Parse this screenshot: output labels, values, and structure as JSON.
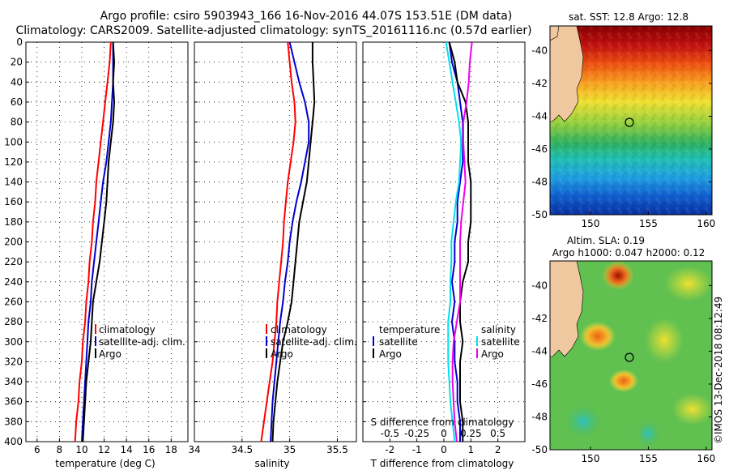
{
  "header": {
    "title_line1": "Argo profile: csiro 5903943_166 16-Nov-2016 44.07S 153.51E (DM data)",
    "title_line2": "Climatology: CARS2009. Satellite-adjusted climatology: synTS_20161116.nc (0.57d earlier)"
  },
  "colors": {
    "climatology": "#ff0000",
    "satellite": "#0000cc",
    "argo": "#000000",
    "s_satellite": "#00e0ee",
    "s_argo_diff": "#ee00ee",
    "land": "#f0c8a0"
  },
  "chart_data": [
    {
      "type": "line",
      "name": "temperature-profile",
      "xlabel": "temperature (deg C)",
      "ylabel": "",
      "xlim": [
        5,
        19.5
      ],
      "ylim": [
        400,
        0
      ],
      "xticks": [
        "6",
        "8",
        "10",
        "12",
        "14",
        "16",
        "18"
      ],
      "yticks": [
        "0",
        "20",
        "40",
        "60",
        "80",
        "100",
        "120",
        "140",
        "160",
        "180",
        "200",
        "220",
        "240",
        "260",
        "280",
        "300",
        "320",
        "340",
        "360",
        "380",
        "400"
      ],
      "legend": [
        "climatology",
        "satellite-adj. clim.",
        "Argo"
      ],
      "series": [
        {
          "name": "climatology",
          "depth": [
            0,
            20,
            40,
            60,
            80,
            100,
            120,
            140,
            160,
            180,
            200,
            220,
            240,
            260,
            280,
            300,
            320,
            340,
            360,
            380,
            400
          ],
          "values": [
            12.6,
            12.5,
            12.3,
            12.1,
            11.9,
            11.7,
            11.5,
            11.3,
            11.2,
            11.0,
            10.9,
            10.7,
            10.6,
            10.4,
            10.3,
            10.1,
            10.0,
            9.8,
            9.7,
            9.5,
            9.4
          ]
        },
        {
          "name": "satellite-adj. clim.",
          "depth": [
            0,
            20,
            40,
            60,
            80,
            100,
            120,
            140,
            160,
            180,
            200,
            220,
            240,
            260,
            280,
            300,
            320,
            340,
            360,
            380,
            400
          ],
          "values": [
            12.8,
            12.8,
            12.8,
            12.7,
            12.6,
            12.4,
            12.2,
            11.9,
            11.7,
            11.5,
            11.3,
            11.1,
            10.9,
            10.8,
            10.6,
            10.5,
            10.4,
            10.3,
            10.2,
            10.1,
            10.0
          ]
        },
        {
          "name": "Argo",
          "depth": [
            0,
            20,
            40,
            60,
            80,
            100,
            120,
            140,
            160,
            180,
            200,
            220,
            240,
            260,
            280,
            300,
            320,
            340,
            360,
            380,
            400
          ],
          "values": [
            12.8,
            12.9,
            12.8,
            12.9,
            12.8,
            12.6,
            12.4,
            12.3,
            12.2,
            12.0,
            11.8,
            11.6,
            11.3,
            11.0,
            10.9,
            10.8,
            10.6,
            10.4,
            10.3,
            10.2,
            10.1
          ]
        }
      ]
    },
    {
      "type": "line",
      "name": "salinity-profile",
      "xlabel": "salinity",
      "xlim": [
        34,
        35.7
      ],
      "ylim": [
        400,
        0
      ],
      "xticks": [
        "34",
        "34.5",
        "35",
        "35.5"
      ],
      "legend": [
        "climatology",
        "satellite-adj. clim.",
        "Argo"
      ],
      "series": [
        {
          "name": "climatology",
          "depth": [
            0,
            20,
            40,
            60,
            80,
            100,
            120,
            140,
            160,
            180,
            200,
            220,
            240,
            260,
            280,
            300,
            320,
            340,
            360,
            380,
            400
          ],
          "values": [
            34.98,
            35.0,
            35.02,
            35.05,
            35.06,
            35.04,
            35.01,
            34.98,
            34.96,
            34.94,
            34.93,
            34.91,
            34.89,
            34.87,
            34.86,
            34.84,
            34.82,
            34.79,
            34.76,
            34.73,
            34.7
          ]
        },
        {
          "name": "satellite-adj. clim.",
          "depth": [
            0,
            20,
            40,
            60,
            80,
            100,
            120,
            140,
            160,
            180,
            200,
            220,
            240,
            260,
            280,
            300,
            320,
            340,
            360,
            380,
            400
          ],
          "values": [
            35.0,
            35.05,
            35.1,
            35.16,
            35.2,
            35.2,
            35.16,
            35.12,
            35.07,
            35.03,
            35.0,
            34.98,
            34.95,
            34.93,
            34.9,
            34.88,
            34.86,
            34.84,
            34.82,
            34.81,
            34.8
          ]
        },
        {
          "name": "Argo",
          "depth": [
            0,
            20,
            40,
            60,
            80,
            100,
            120,
            140,
            160,
            180,
            200,
            220,
            240,
            260,
            280,
            300,
            320,
            340,
            360,
            380,
            400
          ],
          "values": [
            35.24,
            35.24,
            35.25,
            35.26,
            35.24,
            35.22,
            35.2,
            35.18,
            35.14,
            35.1,
            35.08,
            35.06,
            35.04,
            35.02,
            34.98,
            34.93,
            34.9,
            34.87,
            34.85,
            34.83,
            34.82
          ]
        }
      ]
    },
    {
      "type": "line",
      "name": "difference-profile",
      "xlabel": "T difference from climatology",
      "xlabel_top": "S difference from climatology",
      "xlim": [
        -3,
        3
      ],
      "ylim": [
        400,
        0
      ],
      "xticks": [
        "-2",
        "-1",
        "0",
        "1",
        "2"
      ],
      "xticks_salinity": [
        "-0.5",
        "-0.25",
        "0",
        "0.25",
        "0.5"
      ],
      "legend_temperature": [
        "temperature",
        "satellite",
        "Argo"
      ],
      "legend_salinity": [
        "salinity",
        "satellite",
        "Argo"
      ],
      "series": [
        {
          "name": "T satellite",
          "depth": [
            0,
            20,
            40,
            60,
            80,
            100,
            120,
            140,
            160,
            180,
            200,
            220,
            240,
            260,
            280,
            300,
            320,
            340,
            360,
            380,
            400
          ],
          "values": [
            0.2,
            0.3,
            0.5,
            0.6,
            0.7,
            0.7,
            0.7,
            0.6,
            0.5,
            0.5,
            0.4,
            0.4,
            0.3,
            0.4,
            0.3,
            0.4,
            0.4,
            0.5,
            0.5,
            0.6,
            0.6
          ]
        },
        {
          "name": "T Argo",
          "depth": [
            0,
            20,
            40,
            60,
            80,
            100,
            120,
            140,
            160,
            180,
            200,
            220,
            240,
            260,
            280,
            300,
            320,
            340,
            360,
            380,
            400
          ],
          "values": [
            0.2,
            0.4,
            0.5,
            0.8,
            0.9,
            0.9,
            0.9,
            1.0,
            1.0,
            1.0,
            0.9,
            0.9,
            0.7,
            0.6,
            0.6,
            0.7,
            0.6,
            0.6,
            0.6,
            0.7,
            0.7
          ]
        },
        {
          "name": "S satellite",
          "depth": [
            0,
            20,
            40,
            60,
            80,
            100,
            120,
            140,
            160,
            180,
            200,
            220,
            240,
            260,
            280,
            300,
            320,
            340,
            360,
            380,
            400
          ],
          "values": [
            0.02,
            0.05,
            0.08,
            0.11,
            0.14,
            0.16,
            0.15,
            0.14,
            0.11,
            0.09,
            0.07,
            0.07,
            0.06,
            0.06,
            0.04,
            0.04,
            0.04,
            0.05,
            0.06,
            0.08,
            0.1
          ]
        },
        {
          "name": "S Argo",
          "depth": [
            0,
            20,
            40,
            60,
            80,
            100,
            120,
            140,
            160,
            180,
            200,
            220,
            240,
            260,
            280,
            300,
            320,
            340,
            360,
            380,
            400
          ],
          "values": [
            0.26,
            0.24,
            0.23,
            0.21,
            0.18,
            0.18,
            0.19,
            0.2,
            0.18,
            0.16,
            0.15,
            0.15,
            0.15,
            0.15,
            0.12,
            0.09,
            0.08,
            0.08,
            0.09,
            0.1,
            0.12
          ]
        }
      ]
    },
    {
      "type": "heatmap",
      "name": "sst-map",
      "title": "sat. SST: 12.8 Argo: 12.8",
      "xticks": [
        "150",
        "155",
        "160"
      ],
      "yticks": [
        "-40",
        "-42",
        "-44",
        "-46",
        "-48",
        "-50"
      ],
      "xlim": [
        146.5,
        160.5
      ],
      "ylim": [
        -50,
        -38.5
      ],
      "marker": {
        "lon": 153.51,
        "lat": -44.07
      }
    },
    {
      "type": "heatmap",
      "name": "sla-map",
      "title": "Altim. SLA: 0.19",
      "subtitle": "Argo h1000: 0.047 h2000: 0.12",
      "xticks": [
        "150",
        "155",
        "160"
      ],
      "yticks": [
        "-40",
        "-42",
        "-44",
        "-46",
        "-48",
        "-50"
      ],
      "xlim": [
        146.5,
        160.5
      ],
      "ylim": [
        -50,
        -38.5
      ],
      "marker": {
        "lon": 153.51,
        "lat": -44.07
      }
    }
  ],
  "footer": {
    "credit": "©IMOS 13-Dec-2018 08:12:49"
  }
}
